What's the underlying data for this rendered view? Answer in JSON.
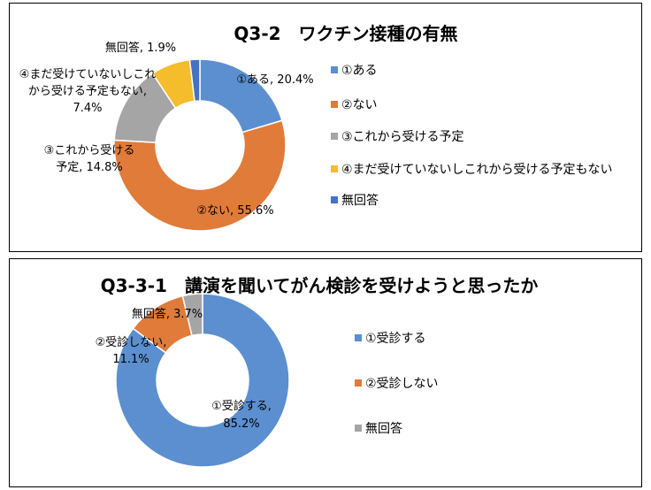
{
  "chart_data": [
    {
      "type": "pie",
      "title": "Q3-2　ワクチン接種の有無",
      "categories": [
        "①ある",
        "②ない",
        "③これから受ける予定",
        "④まだ受けていないしこれから受ける予定もない",
        "無回答"
      ],
      "values": [
        20.4,
        55.6,
        14.8,
        7.4,
        1.9
      ],
      "colors": [
        "#5b8fd0",
        "#e07b39",
        "#a5a5a5",
        "#f5bd2c",
        "#4472c4"
      ],
      "data_labels": [
        [
          "①ある, 20.4%"
        ],
        [
          "②ない, 55.6%"
        ],
        [
          "③これから受ける",
          "予定, 14.8%"
        ],
        [
          "④まだ受けていないしこれ",
          "から受ける予定もない,",
          "7.4%"
        ],
        [
          "無回答, 1.9%"
        ]
      ],
      "legend_position": "right",
      "donut": true
    },
    {
      "type": "pie",
      "title": "Q3-3-1　講演を聞いてがん検診を受けようと思ったか",
      "categories": [
        "①受診する",
        "②受診しない",
        "無回答"
      ],
      "values": [
        85.2,
        11.1,
        3.7
      ],
      "colors": [
        "#5b8fd0",
        "#e07b39",
        "#a5a5a5"
      ],
      "data_labels": [
        [
          "①受診する,",
          "85.2%"
        ],
        [
          "②受診しない,",
          "11.1%"
        ],
        [
          "無回答, 3.7%"
        ]
      ],
      "legend_position": "right",
      "donut": true
    }
  ]
}
